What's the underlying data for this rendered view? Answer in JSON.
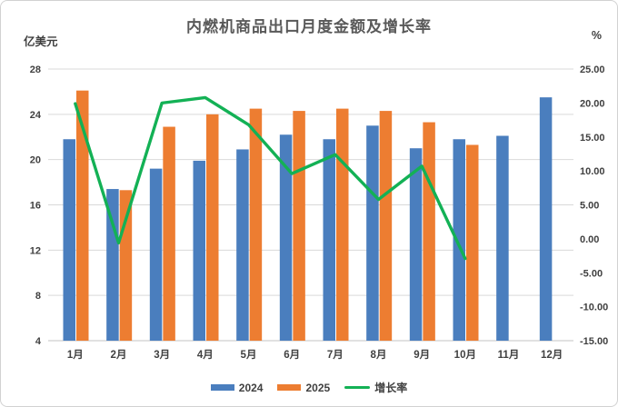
{
  "title": "内燃机商品出口月度金额及增长率",
  "left_axis": {
    "unit": "亿美元",
    "min": 4,
    "max": 28,
    "step": 4
  },
  "right_axis": {
    "unit": "%",
    "min": -15,
    "max": 25,
    "step": 5,
    "decimals": 2
  },
  "colors": {
    "bar_2024": "#4A7EBE",
    "bar_2025": "#ED7D31",
    "growth_line": "#13B155",
    "gridline": "#d9d9d9",
    "axis_line": "#c3c3c3",
    "tick_text": "#404040",
    "title_text": "#595959"
  },
  "legend": [
    {
      "label": "2024",
      "type": "bar",
      "color": "#4A7EBE"
    },
    {
      "label": "2025",
      "type": "bar",
      "color": "#ED7D31"
    },
    {
      "label": "增长率",
      "type": "line",
      "color": "#13B155"
    }
  ],
  "chart_data": {
    "type": "bar",
    "subtype": "grouped-bars-with-line",
    "title": "内燃机商品出口月度金额及增长率",
    "xlabel": "",
    "ylabel_left": "亿美元",
    "ylabel_right": "%",
    "ylim_left": [
      4,
      28
    ],
    "ylim_right": [
      -15,
      25
    ],
    "grid": true,
    "legend_position": "bottom",
    "categories": [
      "1月",
      "2月",
      "3月",
      "4月",
      "5月",
      "6月",
      "7月",
      "8月",
      "9月",
      "10月",
      "11月",
      "12月"
    ],
    "series": [
      {
        "name": "2024",
        "type": "bar",
        "axis": "left",
        "color": "#4A7EBE",
        "values": [
          21.8,
          17.4,
          19.2,
          19.9,
          20.9,
          22.2,
          21.8,
          23.0,
          21.0,
          21.8,
          22.1,
          25.5
        ]
      },
      {
        "name": "2025",
        "type": "bar",
        "axis": "left",
        "color": "#ED7D31",
        "values": [
          26.1,
          17.3,
          22.9,
          24.0,
          24.5,
          24.3,
          24.5,
          24.3,
          23.3,
          21.3,
          null,
          null
        ]
      },
      {
        "name": "增长率",
        "type": "line",
        "axis": "right",
        "color": "#13B155",
        "values": [
          19.9,
          -0.6,
          20.0,
          20.8,
          16.8,
          9.6,
          12.4,
          5.8,
          10.7,
          -2.9,
          null,
          null
        ]
      }
    ]
  }
}
